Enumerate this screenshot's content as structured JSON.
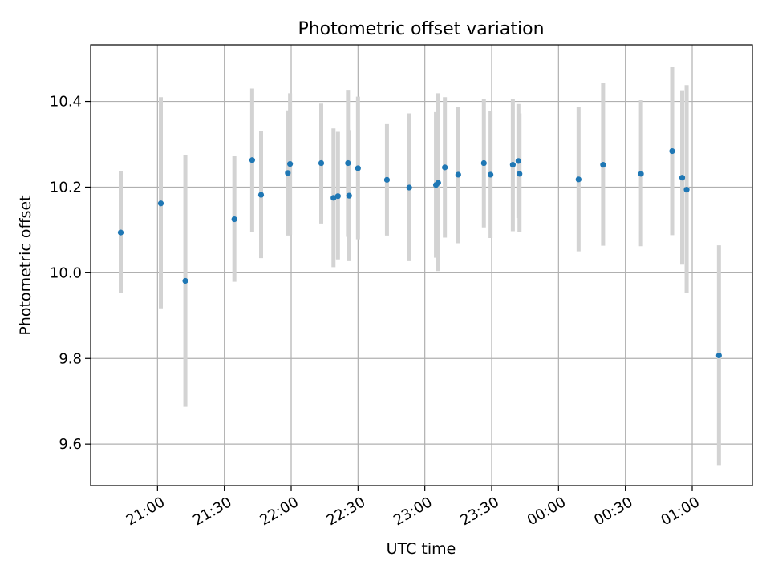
{
  "chart_data": {
    "type": "scatter",
    "title": "Photometric offset variation",
    "xlabel": "UTC time",
    "ylabel": "Photometric offset",
    "x_tick_labels": [
      "21:00",
      "21:30",
      "22:00",
      "22:30",
      "23:00",
      "23:30",
      "00:00",
      "00:30",
      "01:00"
    ],
    "x_tick_times": [
      "2000-01-01T21:00",
      "2000-01-01T21:30",
      "2000-01-01T22:00",
      "2000-01-01T22:30",
      "2000-01-01T23:00",
      "2000-01-01T23:30",
      "2000-01-02T00:00",
      "2000-01-02T00:30",
      "2000-01-02T01:00"
    ],
    "y_ticks": [
      9.6,
      9.8,
      10.0,
      10.2,
      10.4
    ],
    "y_tick_labels": [
      "9.6",
      "9.8",
      "10.0",
      "10.2",
      "10.4"
    ],
    "xlim": [
      "2000-01-01T20:30:00",
      "2000-01-02T01:27:00"
    ],
    "ylim": [
      9.503,
      10.532
    ],
    "grid": true,
    "colors": {
      "points": "#1f77b4",
      "error_bars": "#d3d3d3",
      "grid": "#b0b0b0"
    },
    "points": [
      {
        "x": "2000-01-01T20:43:30",
        "y": 10.094,
        "ylo": 9.953,
        "yhi": 10.238
      },
      {
        "x": "2000-01-01T21:01:30",
        "y": 10.162,
        "ylo": 9.917,
        "yhi": 10.41
      },
      {
        "x": "2000-01-01T21:12:30",
        "y": 9.981,
        "ylo": 9.687,
        "yhi": 10.274
      },
      {
        "x": "2000-01-01T21:34:30",
        "y": 10.125,
        "ylo": 9.979,
        "yhi": 10.272
      },
      {
        "x": "2000-01-01T21:42:30",
        "y": 10.263,
        "ylo": 10.096,
        "yhi": 10.43
      },
      {
        "x": "2000-01-01T21:46:30",
        "y": 10.182,
        "ylo": 10.034,
        "yhi": 10.331
      },
      {
        "x": "2000-01-01T21:58:30",
        "y": 10.233,
        "ylo": 10.087,
        "yhi": 10.379
      },
      {
        "x": "2000-01-01T21:59:30",
        "y": 10.254,
        "ylo": 10.089,
        "yhi": 10.419
      },
      {
        "x": "2000-01-01T22:13:30",
        "y": 10.256,
        "ylo": 10.115,
        "yhi": 10.395
      },
      {
        "x": "2000-01-01T22:19:00",
        "y": 10.175,
        "ylo": 10.013,
        "yhi": 10.337
      },
      {
        "x": "2000-01-01T22:21:00",
        "y": 10.179,
        "ylo": 10.031,
        "yhi": 10.329
      },
      {
        "x": "2000-01-01T22:25:30",
        "y": 10.256,
        "ylo": 10.084,
        "yhi": 10.427
      },
      {
        "x": "2000-01-01T22:26:00",
        "y": 10.18,
        "ylo": 10.027,
        "yhi": 10.333
      },
      {
        "x": "2000-01-01T22:30:00",
        "y": 10.244,
        "ylo": 10.078,
        "yhi": 10.411
      },
      {
        "x": "2000-01-01T22:43:00",
        "y": 10.217,
        "ylo": 10.087,
        "yhi": 10.347
      },
      {
        "x": "2000-01-01T22:53:00",
        "y": 10.199,
        "ylo": 10.027,
        "yhi": 10.372
      },
      {
        "x": "2000-01-01T23:05:00",
        "y": 10.205,
        "ylo": 10.035,
        "yhi": 10.375
      },
      {
        "x": "2000-01-01T23:06:00",
        "y": 10.21,
        "ylo": 10.004,
        "yhi": 10.419
      },
      {
        "x": "2000-01-01T23:09:00",
        "y": 10.246,
        "ylo": 10.082,
        "yhi": 10.41
      },
      {
        "x": "2000-01-01T23:15:00",
        "y": 10.229,
        "ylo": 10.069,
        "yhi": 10.388
      },
      {
        "x": "2000-01-01T23:26:30",
        "y": 10.256,
        "ylo": 10.106,
        "yhi": 10.405
      },
      {
        "x": "2000-01-01T23:29:30",
        "y": 10.229,
        "ylo": 10.081,
        "yhi": 10.377
      },
      {
        "x": "2000-01-01T23:39:30",
        "y": 10.252,
        "ylo": 10.097,
        "yhi": 10.406
      },
      {
        "x": "2000-01-01T23:42:00",
        "y": 10.261,
        "ylo": 10.128,
        "yhi": 10.394
      },
      {
        "x": "2000-01-01T23:42:30",
        "y": 10.231,
        "ylo": 10.095,
        "yhi": 10.372
      },
      {
        "x": "2000-01-02T00:09:00",
        "y": 10.218,
        "ylo": 10.05,
        "yhi": 10.388
      },
      {
        "x": "2000-01-02T00:20:00",
        "y": 10.252,
        "ylo": 10.063,
        "yhi": 10.444
      },
      {
        "x": "2000-01-02T00:37:00",
        "y": 10.231,
        "ylo": 10.062,
        "yhi": 10.403
      },
      {
        "x": "2000-01-02T00:51:00",
        "y": 10.284,
        "ylo": 10.088,
        "yhi": 10.481
      },
      {
        "x": "2000-01-02T00:55:30",
        "y": 10.222,
        "ylo": 10.019,
        "yhi": 10.426
      },
      {
        "x": "2000-01-02T00:57:30",
        "y": 10.194,
        "ylo": 9.953,
        "yhi": 10.438
      },
      {
        "x": "2000-01-02T01:12:00",
        "y": 9.807,
        "ylo": 9.551,
        "yhi": 10.064
      }
    ]
  }
}
